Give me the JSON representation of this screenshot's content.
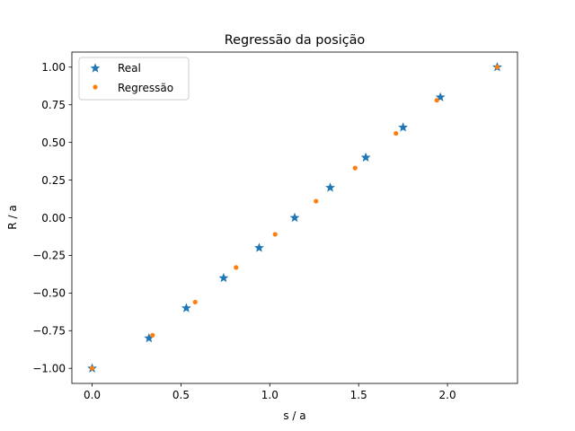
{
  "chart_data": {
    "type": "scatter",
    "title": "Regressão da posição",
    "xlabel": "s / a",
    "ylabel": "R / a",
    "xlim": [
      -0.114,
      2.394
    ],
    "ylim": [
      -1.1,
      1.1
    ],
    "xticks": [
      0.0,
      0.5,
      1.0,
      1.5,
      2.0
    ],
    "xtick_labels": [
      "0.0",
      "0.5",
      "1.0",
      "1.5",
      "2.0"
    ],
    "yticks": [
      -1.0,
      -0.75,
      -0.5,
      -0.25,
      0.0,
      0.25,
      0.5,
      0.75,
      1.0
    ],
    "ytick_labels": [
      "−1.00",
      "−0.75",
      "−0.50",
      "−0.25",
      "0.00",
      "0.25",
      "0.50",
      "0.75",
      "1.00"
    ],
    "grid": false,
    "legend_position": "top-left",
    "series": [
      {
        "name": "Real",
        "marker": "star",
        "color": "#1f77b4",
        "x": [
          0.0,
          0.32,
          0.53,
          0.74,
          0.94,
          1.14,
          1.34,
          1.54,
          1.75,
          1.96,
          2.28
        ],
        "y": [
          -1.0,
          -0.8,
          -0.6,
          -0.4,
          -0.2,
          0.0,
          0.2,
          0.4,
          0.6,
          0.8,
          1.0
        ]
      },
      {
        "name": "Regressão",
        "marker": "dot",
        "color": "#ff7f0e",
        "x": [
          0.0,
          0.34,
          0.58,
          0.81,
          1.03,
          1.26,
          1.48,
          1.71,
          1.94,
          2.28
        ],
        "y": [
          -1.0,
          -0.78,
          -0.56,
          -0.33,
          -0.11,
          0.11,
          0.33,
          0.56,
          0.78,
          1.0
        ]
      }
    ]
  }
}
